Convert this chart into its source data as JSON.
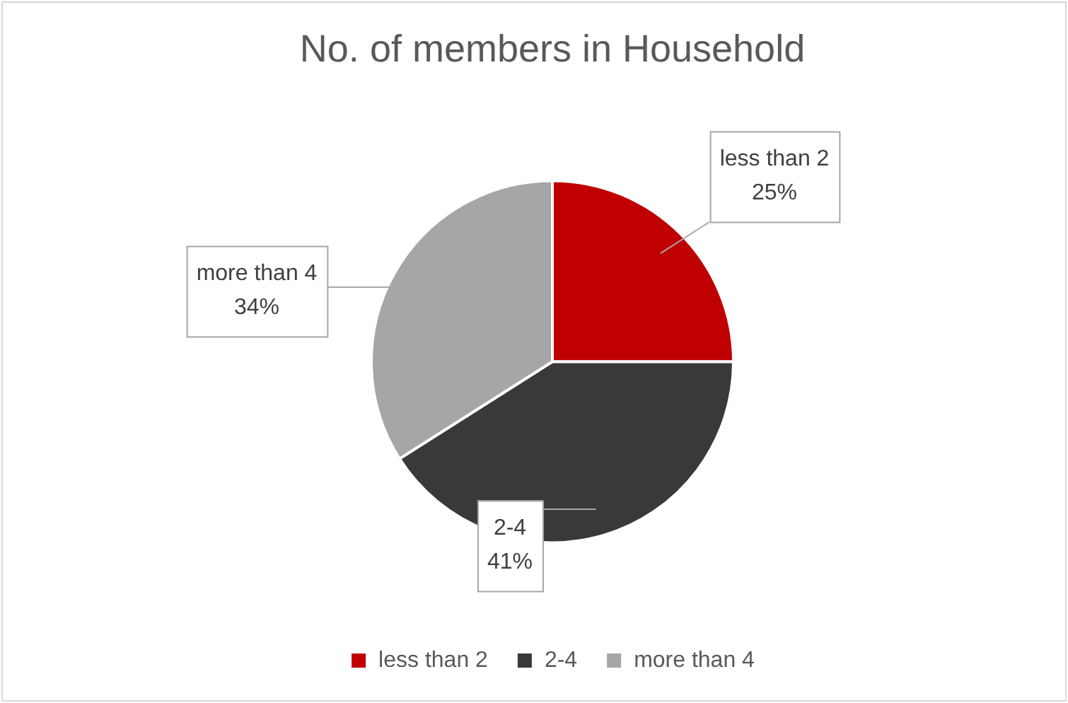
{
  "chart_data": {
    "type": "pie",
    "title": "No. of members in Household",
    "categories": [
      "less than 2",
      "2-4",
      "more than 4"
    ],
    "values": [
      25,
      41,
      34
    ],
    "colors": [
      "#c00000",
      "#3a3839",
      "#a6a6a6"
    ],
    "data_labels": true,
    "value_labels": [
      "25%",
      "41%",
      "34%"
    ],
    "legend": "bottom"
  }
}
